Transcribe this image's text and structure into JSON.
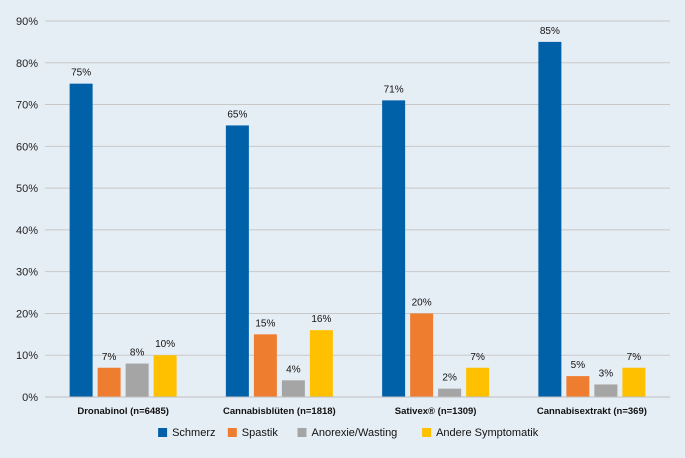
{
  "chart_data": {
    "type": "bar",
    "categories": [
      "Dronabinol (n=6485)",
      "Cannabisblüten (n=1818)",
      "Sativex® (n=1309)",
      "Cannabisextrakt (n=369)"
    ],
    "series": [
      {
        "name": "Schmerz",
        "color": "#0060a8",
        "values": [
          75,
          65,
          71,
          85
        ],
        "labels": [
          "75%",
          "65%",
          "71%",
          "85%"
        ]
      },
      {
        "name": "Spastik",
        "color": "#ef7d30",
        "values": [
          7,
          15,
          20,
          5
        ],
        "labels": [
          "7%",
          "15%",
          "20%",
          "5%"
        ]
      },
      {
        "name": "Anorexie/Wasting",
        "color": "#a5a5a5",
        "values": [
          8,
          4,
          2,
          3
        ],
        "labels": [
          "8%",
          "4%",
          "2%",
          "3%"
        ]
      },
      {
        "name": "Andere Symptomatik",
        "color": "#ffc000",
        "values": [
          10,
          16,
          7,
          7
        ],
        "labels": [
          "10%",
          "16%",
          "7%",
          "7%"
        ]
      }
    ],
    "y_ticks": [
      "0%",
      "10%",
      "20%",
      "30%",
      "40%",
      "50%",
      "60%",
      "70%",
      "80%",
      "90%"
    ],
    "ylim": [
      0,
      90
    ],
    "grid": true,
    "legend_position": "bottom"
  }
}
